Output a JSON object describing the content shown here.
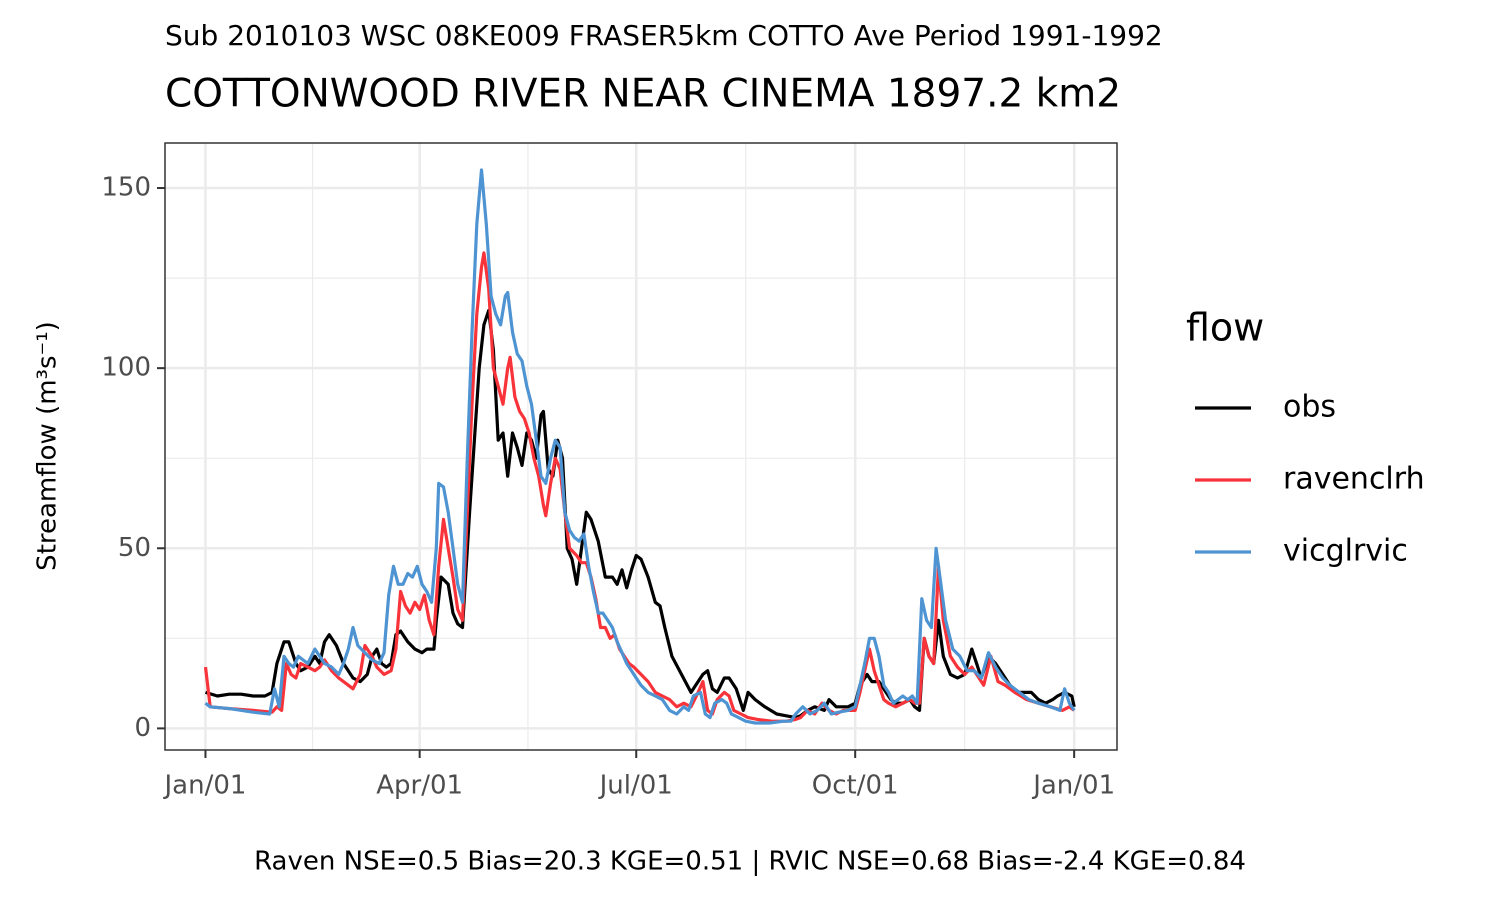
{
  "chart_data": {
    "type": "line",
    "subtitle": "Sub 2010103 WSC 08KE009 FRASER5km COTTO Ave Period 1991-1992",
    "title": "COTTONWOOD RIVER NEAR CINEMA 1897.2 km2",
    "y_label": "Streamflow (m³s⁻¹)",
    "caption": "Raven NSE=0.5 Bias=20.3 KGE=0.51 | RVIC NSE=0.68 Bias=-2.4 KGE=0.84",
    "legend_title": "flow",
    "legend_position": "right",
    "grid": true,
    "xlim": [
      -17,
      383
    ],
    "xticks": [
      {
        "value": 0,
        "label": "Jan/01"
      },
      {
        "value": 90,
        "label": "Apr/01"
      },
      {
        "value": 181,
        "label": "Jul/01"
      },
      {
        "value": 273,
        "label": "Oct/01"
      },
      {
        "value": 365,
        "label": "Jan/01"
      }
    ],
    "x_minor_ticks": [
      45,
      135.5,
      227,
      319
    ],
    "ylim": [
      -6,
      162.5
    ],
    "yticks": [
      0,
      50,
      100,
      150
    ],
    "y_minor_ticks": [
      25,
      75,
      125
    ],
    "series": [
      {
        "name": "obs",
        "color": "#000000",
        "x": [
          0,
          5,
          10,
          15,
          20,
          25,
          28,
          30,
          33,
          35,
          38,
          40,
          43,
          46,
          48,
          50,
          52,
          55,
          58,
          62,
          65,
          68,
          70,
          72,
          74,
          76,
          78,
          80,
          82,
          85,
          88,
          91,
          93,
          96,
          97,
          99,
          102,
          104,
          106,
          108,
          111,
          113,
          115,
          117,
          119,
          121,
          123,
          125,
          127,
          129,
          131,
          133,
          135,
          137,
          139,
          141,
          142,
          144,
          146,
          148,
          150,
          152,
          154,
          156,
          158,
          160,
          162,
          165,
          168,
          171,
          173,
          175,
          177,
          179,
          181,
          183,
          186,
          189,
          191,
          193,
          196,
          200,
          204,
          206,
          209,
          211,
          213,
          215,
          218,
          220,
          223,
          226,
          228,
          231,
          235,
          240,
          244,
          248,
          250,
          253,
          256,
          260,
          262,
          265,
          270,
          273,
          275,
          278,
          280,
          283,
          286,
          288,
          290,
          293,
          296,
          298,
          300,
          302,
          304,
          306,
          308,
          310,
          313,
          316,
          319,
          322,
          324,
          326,
          329,
          332,
          335,
          338,
          341,
          344,
          347,
          350,
          353,
          356,
          358,
          361,
          364,
          365
        ],
        "values": [
          10,
          9,
          9.5,
          9.5,
          9,
          9,
          10,
          18,
          24,
          24,
          18,
          16,
          17,
          20,
          18,
          24,
          26,
          23,
          18,
          14,
          13,
          15,
          20,
          22,
          18,
          17,
          18,
          26,
          27,
          24,
          22,
          21,
          22,
          22,
          30,
          42,
          40,
          32,
          29,
          28,
          60,
          80,
          100,
          112,
          116,
          105,
          80,
          82,
          70,
          82,
          78,
          73,
          82,
          80,
          75,
          87,
          88,
          72,
          70,
          80,
          75,
          50,
          47,
          40,
          50,
          60,
          58,
          52,
          42,
          42,
          40,
          44,
          39,
          44,
          48,
          47,
          42,
          35,
          34,
          28,
          20,
          15,
          10,
          12,
          15,
          16,
          11,
          10,
          14,
          14,
          11,
          5,
          10,
          8,
          6,
          4,
          3.5,
          3,
          3.5,
          5,
          6,
          5,
          8,
          6,
          6,
          7,
          12,
          15,
          13,
          13,
          10,
          8,
          7,
          7,
          8,
          6,
          5,
          25,
          20,
          18,
          30,
          20,
          15,
          14,
          15,
          22,
          18,
          14,
          20,
          18,
          15,
          12,
          10,
          10,
          10,
          8,
          7,
          8,
          9,
          10,
          9,
          6
        ]
      },
      {
        "name": "ravenclrh",
        "color": "#f8333a",
        "x": [
          0,
          2,
          10,
          20,
          28,
          30,
          32,
          34,
          36,
          38,
          40,
          43,
          46,
          48,
          50,
          53,
          56,
          60,
          62,
          65,
          67,
          70,
          72,
          75,
          78,
          80,
          82,
          84,
          86,
          88,
          90,
          92,
          94,
          96,
          98,
          100,
          102,
          104,
          106,
          108,
          110,
          112,
          114,
          116,
          117,
          119,
          121,
          123,
          125,
          127,
          128,
          130,
          132,
          134,
          136,
          138,
          140,
          142,
          143,
          145,
          147,
          149,
          151,
          153,
          156,
          158,
          160,
          162,
          164,
          166,
          168,
          170,
          172,
          174,
          176,
          178,
          180,
          183,
          186,
          189,
          192,
          195,
          198,
          201,
          204,
          207,
          209,
          211,
          213,
          215,
          218,
          220,
          222,
          225,
          228,
          232,
          238,
          244,
          248,
          250,
          253,
          256,
          259,
          262,
          265,
          268,
          271,
          273,
          275,
          277,
          279,
          281,
          283,
          285,
          287,
          290,
          293,
          296,
          298,
          300,
          302,
          304,
          306,
          308,
          310,
          313,
          316,
          319,
          322,
          325,
          327,
          330,
          333,
          336,
          340,
          345,
          350,
          355,
          360,
          363,
          365
        ],
        "values": [
          17,
          6,
          5.5,
          5,
          4.5,
          6,
          5,
          18,
          15,
          14,
          18,
          17,
          16,
          17,
          19,
          16,
          14,
          12,
          11,
          15,
          23,
          20,
          17,
          15,
          16,
          22,
          38,
          34,
          32,
          35,
          33,
          37,
          30,
          26,
          45,
          58,
          50,
          42,
          33,
          30,
          60,
          90,
          115,
          128,
          132,
          122,
          100,
          95,
          90,
          100,
          103,
          92,
          88,
          86,
          82,
          75,
          70,
          62,
          59,
          68,
          75,
          72,
          60,
          50,
          48,
          46,
          46,
          42,
          36,
          28,
          28,
          25,
          26,
          22,
          20,
          18,
          17,
          15,
          13,
          10,
          9,
          8,
          6,
          7,
          6,
          10,
          13,
          5,
          4,
          8,
          10,
          9,
          5,
          4,
          3,
          2.5,
          2,
          2,
          2.5,
          3,
          5,
          4,
          7,
          5,
          4,
          5,
          5,
          5,
          10,
          16,
          22,
          16,
          12,
          8,
          7,
          6,
          7,
          8,
          7,
          7,
          25,
          20,
          18,
          45,
          30,
          20,
          17,
          15,
          17,
          14,
          12,
          20,
          13,
          12,
          10,
          8,
          7,
          6,
          5,
          6,
          5
        ]
      },
      {
        "name": "vicglrvic",
        "color": "#4e93d2",
        "x": [
          0,
          2,
          10,
          20,
          27,
          29,
          31,
          33,
          35,
          37,
          39,
          41,
          43,
          46,
          48,
          50,
          53,
          56,
          58,
          60,
          62,
          64,
          67,
          70,
          73,
          75,
          77,
          79,
          81,
          83,
          85,
          87,
          89,
          91,
          93,
          95,
          97,
          98,
          100,
          102,
          104,
          106,
          108,
          110,
          112,
          114,
          116,
          118,
          120,
          122,
          124,
          126,
          127,
          129,
          131,
          133,
          135,
          137,
          139,
          141,
          143,
          145,
          147,
          149,
          151,
          153,
          155,
          157,
          159,
          161,
          163,
          165,
          167,
          169,
          171,
          173,
          175,
          177,
          179,
          181,
          183,
          186,
          189,
          192,
          195,
          198,
          201,
          203,
          205,
          208,
          210,
          212,
          214,
          217,
          219,
          221,
          224,
          227,
          231,
          237,
          243,
          246,
          248,
          251,
          254,
          257,
          260,
          263,
          266,
          270,
          273,
          275,
          277,
          279,
          281,
          283,
          285,
          287,
          289,
          291,
          293,
          295,
          297,
          299,
          301,
          303,
          305,
          307,
          309,
          311,
          314,
          317,
          320,
          323,
          326,
          329,
          332,
          335,
          338,
          342,
          346,
          350,
          355,
          359,
          361,
          363,
          365
        ],
        "values": [
          7,
          6,
          5.5,
          4.5,
          4,
          11,
          6,
          20,
          18,
          17,
          20,
          19,
          18,
          22,
          20,
          18,
          17,
          15,
          18,
          22,
          28,
          23,
          21,
          19,
          18,
          21,
          37,
          45,
          40,
          40,
          43,
          42,
          45,
          40,
          38,
          35,
          50,
          68,
          67,
          60,
          50,
          40,
          35,
          75,
          110,
          140,
          155,
          140,
          120,
          115,
          112,
          120,
          121,
          110,
          104,
          102,
          95,
          90,
          80,
          70,
          68,
          75,
          80,
          78,
          60,
          55,
          53,
          52,
          54,
          45,
          38,
          32,
          32,
          30,
          28,
          24,
          21,
          18,
          16,
          14,
          12,
          10,
          9,
          8,
          5,
          4,
          6,
          5,
          9,
          10,
          4,
          3,
          7,
          8,
          7,
          4,
          3,
          2,
          1.5,
          1.5,
          2,
          2,
          4,
          6,
          4,
          5,
          7,
          4,
          4.5,
          5,
          6,
          12,
          18,
          25,
          25,
          20,
          12,
          10,
          7,
          8,
          9,
          8,
          9,
          7,
          36,
          30,
          28,
          50,
          40,
          30,
          22,
          20,
          16,
          16,
          14,
          21,
          17,
          14,
          12,
          10,
          8,
          7,
          6,
          5,
          11,
          7,
          5
        ]
      }
    ]
  }
}
